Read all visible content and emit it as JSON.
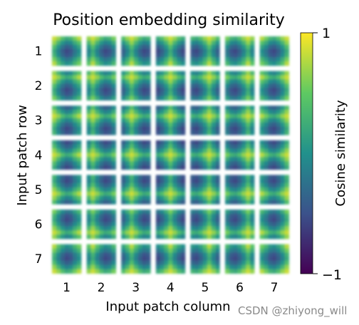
{
  "chart_data": {
    "type": "heatmap",
    "title": "Position embedding similarity",
    "xlabel": "Input patch column",
    "ylabel": "Input patch row",
    "rows": [
      1,
      2,
      3,
      4,
      5,
      6,
      7
    ],
    "cols": [
      1,
      2,
      3,
      4,
      5,
      6,
      7
    ],
    "colorbar": {
      "label": "Cosine similarity",
      "range": [
        -1,
        1
      ],
      "ticks": [
        "1",
        "−1"
      ],
      "colormap": "viridis",
      "colors": [
        "#440154",
        "#3b528b",
        "#21918c",
        "#5ec962",
        "#fde725"
      ]
    },
    "grid": false
  },
  "watermark": "CSDN @zhiyong_will"
}
